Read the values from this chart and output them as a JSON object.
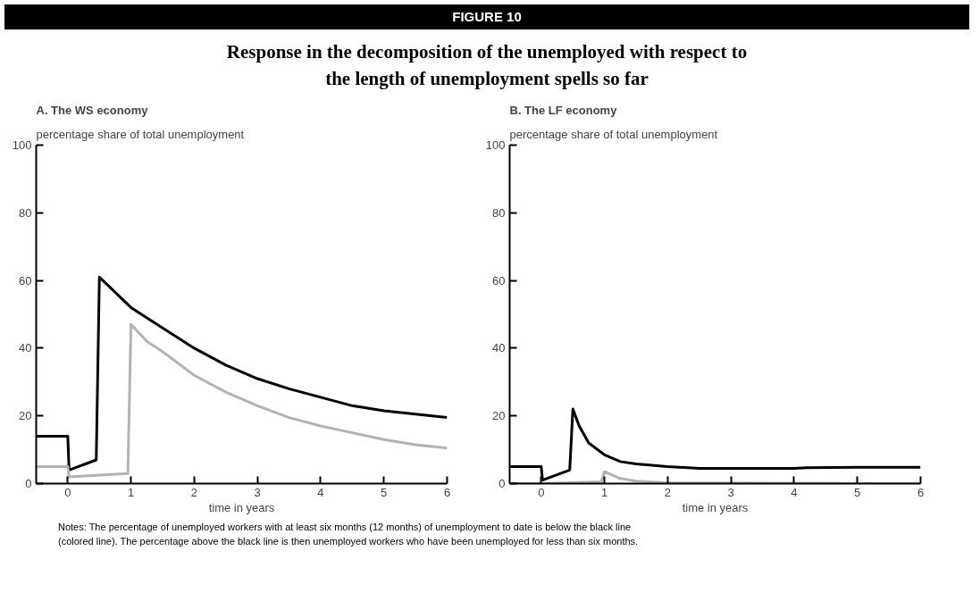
{
  "chart_data": [
    {
      "type": "line",
      "title": "A. The WS economy",
      "ylabel": "percentage share of total unemployment",
      "xlabel": "time in years",
      "xlim": [
        -0.5,
        6
      ],
      "xticks": [
        0,
        1,
        2,
        3,
        4,
        5,
        6
      ],
      "ylim": [
        0,
        100
      ],
      "yticks": [
        0,
        20,
        40,
        60,
        80,
        100
      ],
      "annotations": [
        "FIGURE 10",
        "Response in the decomposition of the unemployed with respect to the length of unemployment spells so far"
      ],
      "series": [
        {
          "color": "#000000",
          "x": [
            -0.5,
            0,
            0.02,
            0.45,
            0.5,
            1,
            1.5,
            2,
            2.5,
            3,
            3.5,
            4,
            4.5,
            5,
            5.5,
            6
          ],
          "values": [
            14,
            14,
            4,
            7,
            61,
            52,
            46,
            40,
            35,
            31,
            28,
            25.5,
            23,
            21.5,
            20.5,
            19.5
          ]
        },
        {
          "color": "#b3b3b3",
          "x": [
            -0.5,
            0,
            0.02,
            0.95,
            1,
            1.25,
            1.5,
            2,
            2.5,
            3,
            3.5,
            4,
            4.5,
            5,
            5.5,
            6
          ],
          "values": [
            5,
            5,
            2,
            3,
            47,
            42,
            39,
            32,
            27,
            23,
            19.5,
            17,
            15,
            13,
            11.5,
            10.5
          ]
        }
      ]
    },
    {
      "type": "line",
      "title": "B. The LF economy",
      "ylabel": "percentage share of total unemployment",
      "xlabel": "time in years",
      "xlim": [
        -0.5,
        6
      ],
      "xticks": [
        0,
        1,
        2,
        3,
        4,
        5,
        6
      ],
      "ylim": [
        0,
        100
      ],
      "yticks": [
        0,
        20,
        40,
        60,
        80,
        100
      ],
      "annotations": [
        "Notes: The percentage of unemployed workers with at least six months (12 months) of unemployment to date is below the black line (colored line).  The percentage above the black line is then unemployed workers who have been unemployed for less than six months."
      ],
      "series": [
        {
          "color": "#000000",
          "x": [
            -0.5,
            0,
            0.02,
            0.45,
            0.5,
            0.6,
            0.75,
            1,
            1.25,
            1.5,
            2,
            2.5,
            3,
            4,
            4.2,
            5,
            6
          ],
          "values": [
            5,
            5,
            1,
            4,
            22,
            17,
            12,
            8.5,
            6.5,
            5.8,
            5,
            4.5,
            4.5,
            4.5,
            4.7,
            4.8,
            4.8
          ]
        },
        {
          "color": "#b3b3b3",
          "x": [
            -0.5,
            0,
            0.95,
            1,
            1.25,
            1.5,
            2,
            6
          ],
          "values": [
            0,
            0,
            0.5,
            3.5,
            1.5,
            0.7,
            0.2,
            0
          ]
        }
      ]
    }
  ]
}
